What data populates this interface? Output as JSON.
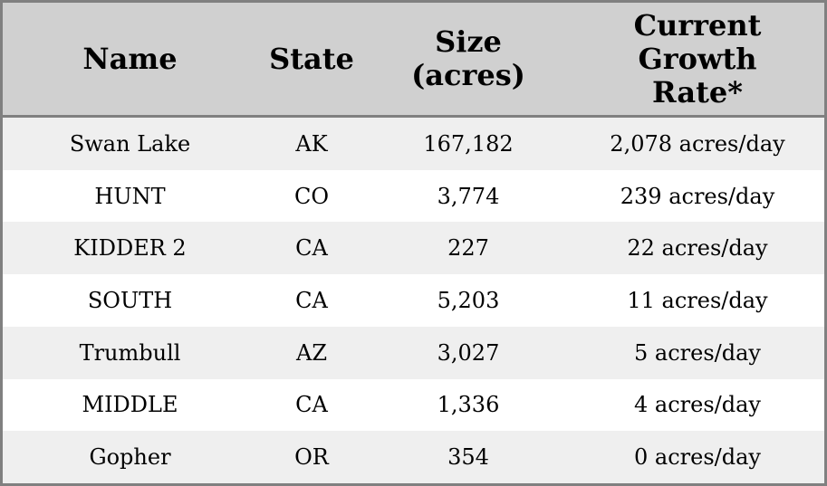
{
  "table": {
    "headers": {
      "name": "Name",
      "state": "State",
      "size": [
        "Size",
        "(acres)"
      ],
      "rate": [
        "Current",
        "Growth",
        "Rate*"
      ]
    },
    "rows": [
      {
        "name": "Swan Lake",
        "state": "AK",
        "size": "167,182",
        "rate": "2,078 acres/day"
      },
      {
        "name": "HUNT",
        "state": "CO",
        "size": "3,774",
        "rate": "239 acres/day"
      },
      {
        "name": "KIDDER 2",
        "state": "CA",
        "size": "227",
        "rate": "22 acres/day"
      },
      {
        "name": "SOUTH",
        "state": "CA",
        "size": "5,203",
        "rate": "11 acres/day"
      },
      {
        "name": "Trumbull",
        "state": "AZ",
        "size": "3,027",
        "rate": "5 acres/day"
      },
      {
        "name": "MIDDLE",
        "state": "CA",
        "size": "1,336",
        "rate": "4 acres/day"
      },
      {
        "name": "Gopher",
        "state": "OR",
        "size": "354",
        "rate": "0 acres/day"
      }
    ]
  },
  "colors": {
    "header_bg": "#d0d0d0",
    "row_alt_bg": "#efefef",
    "row_bg": "#ffffff",
    "border": "#808080"
  }
}
